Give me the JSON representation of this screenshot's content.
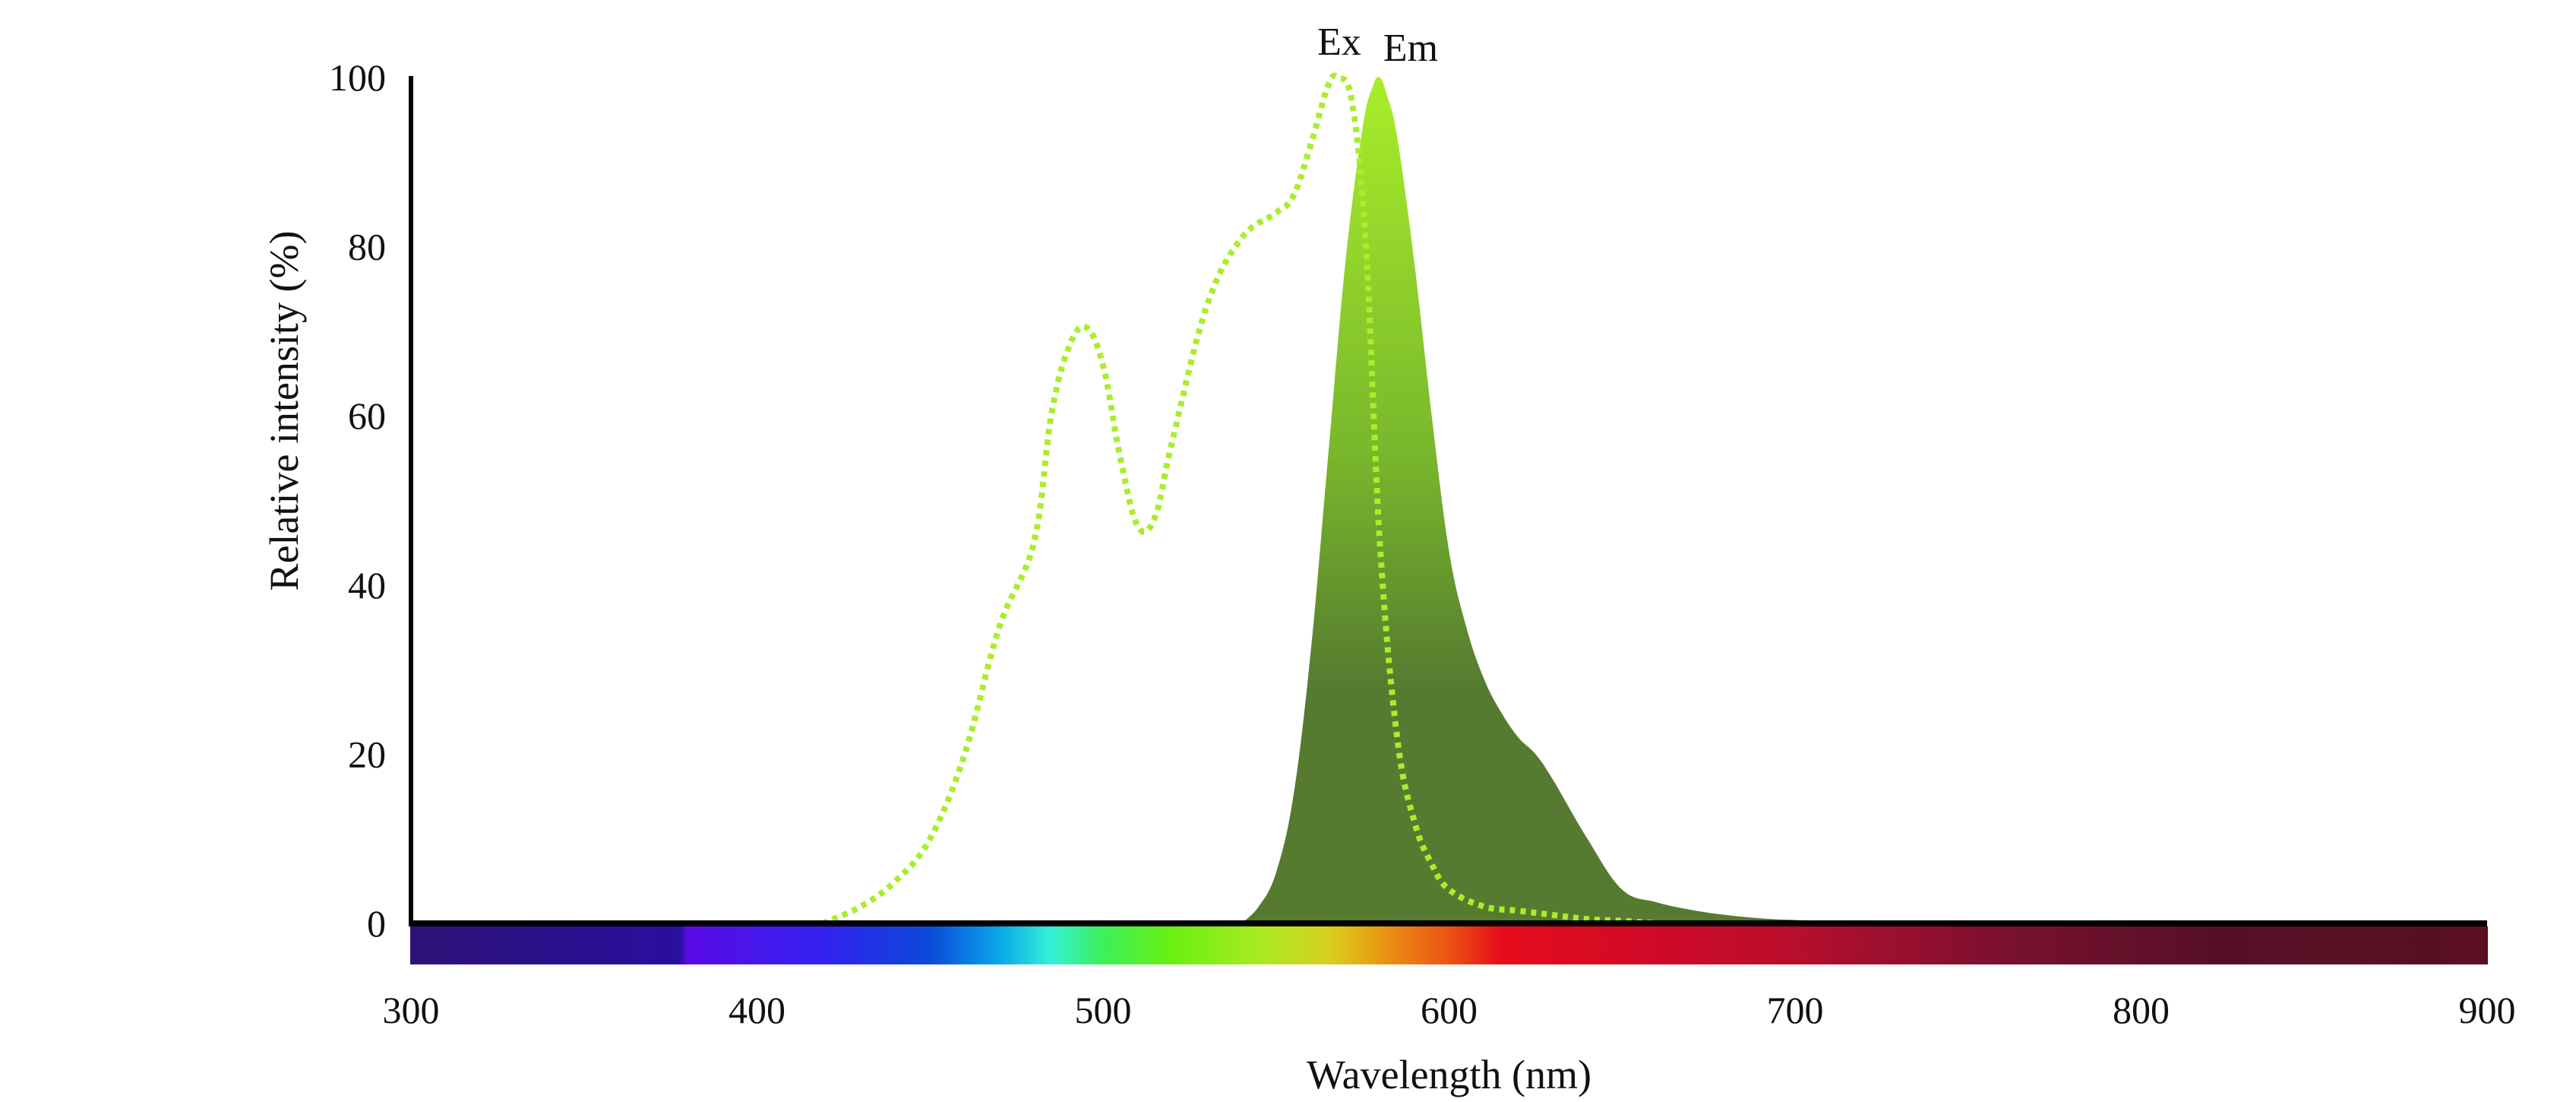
{
  "chart_data": {
    "type": "area",
    "title": "",
    "xlabel": "Wavelength (nm)",
    "ylabel": "Relative intensity (%)",
    "xlim": [
      300,
      900
    ],
    "ylim": [
      0,
      100
    ],
    "x_ticks": [
      "300",
      "400",
      "500",
      "600",
      "700",
      "800",
      "900"
    ],
    "y_ticks": [
      "0",
      "20",
      "40",
      "60",
      "80",
      "100"
    ],
    "grid": false,
    "legend": "none",
    "series": [
      {
        "name": "Ex",
        "style": "dotted-line",
        "color": "#a8ee2a",
        "x": [
          419,
          430,
          440,
          450,
          460,
          470,
          480,
          485,
          490,
          495,
          500,
          505,
          510,
          515,
          520,
          530,
          540,
          550,
          555,
          560,
          565,
          568,
          572,
          576,
          580,
          585,
          590,
          595,
          600,
          610,
          620,
          630,
          640,
          650,
          660
        ],
        "y": [
          0,
          2,
          5,
          10,
          20,
          35,
          45,
          60,
          68,
          70.5,
          66,
          55,
          47,
          48,
          57,
          73,
          81,
          84,
          86,
          92,
          99,
          100,
          97,
          80,
          45,
          22,
          12,
          7,
          4,
          2,
          1.5,
          1,
          0.5,
          0.3,
          0
        ]
      },
      {
        "name": "Em",
        "style": "filled-area",
        "color_top": "#a8ee2a",
        "color_bottom": "#567b30",
        "x": [
          540,
          545,
          550,
          555,
          560,
          565,
          570,
          575,
          578,
          580,
          582,
          585,
          590,
          595,
          600,
          605,
          610,
          615,
          620,
          625,
          630,
          640,
          650,
          660,
          670,
          680,
          690,
          700,
          720,
          750,
          800,
          850,
          900
        ],
        "y": [
          0,
          2,
          6,
          15,
          32,
          55,
          78,
          94,
          99,
          100,
          98,
          93,
          78,
          60,
          44,
          35,
          29,
          25,
          22,
          20,
          17,
          10,
          4,
          2.5,
          1.6,
          1.0,
          0.6,
          0.4,
          0.2,
          0.1,
          0.05,
          0.02,
          0
        ]
      }
    ],
    "annotations": [
      "Ex",
      "Em"
    ],
    "colorbar": {
      "stops": [
        {
          "nm": 300,
          "color": "#2c1276"
        },
        {
          "nm": 378,
          "color": "#2a0fa0"
        },
        {
          "nm": 380,
          "color": "#5a0ae6"
        },
        {
          "nm": 420,
          "color": "#3222f0"
        },
        {
          "nm": 450,
          "color": "#0b49d8"
        },
        {
          "nm": 470,
          "color": "#0aa6e8"
        },
        {
          "nm": 485,
          "color": "#35f0d8"
        },
        {
          "nm": 500,
          "color": "#3cf05a"
        },
        {
          "nm": 520,
          "color": "#6af010"
        },
        {
          "nm": 545,
          "color": "#a8ea22"
        },
        {
          "nm": 565,
          "color": "#d8d020"
        },
        {
          "nm": 580,
          "color": "#e89a12"
        },
        {
          "nm": 600,
          "color": "#ee5212"
        },
        {
          "nm": 615,
          "color": "#e60c1c"
        },
        {
          "nm": 660,
          "color": "#cf0a28"
        },
        {
          "nm": 700,
          "color": "#b80e2c"
        },
        {
          "nm": 760,
          "color": "#7a1030"
        },
        {
          "nm": 820,
          "color": "#561026"
        },
        {
          "nm": 900,
          "color": "#5a0f22"
        }
      ]
    }
  }
}
